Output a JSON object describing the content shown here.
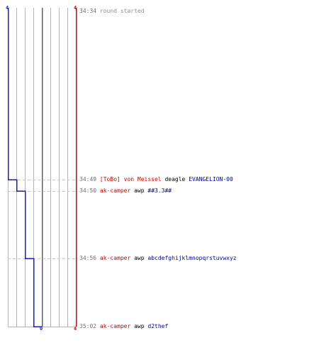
{
  "colors": {
    "grid": "#b4b4b4",
    "dashed": "#c8c8c8",
    "center": "#606060",
    "blue_team": "#1a1acc",
    "red_team": "#cc0000",
    "time_text": "#707070"
  },
  "axis": {
    "blue_start_count": "4",
    "red_start_count": "4",
    "blue_end_count": "0",
    "red_end_count": "4"
  },
  "events": [
    {
      "time": "34:34",
      "type": "event",
      "text": "round started"
    },
    {
      "time": "34:49",
      "type": "kill",
      "killer": "[ToBo] von Meissel",
      "weapon": "deagle",
      "victim": "EVANGELION-00"
    },
    {
      "time": "34:50",
      "type": "kill",
      "killer": "ak-camper",
      "weapon": "awp",
      "victim": "##3.3##"
    },
    {
      "time": "34:56",
      "type": "kill",
      "killer": "ak-camper",
      "weapon": "awp",
      "victim": "abcdefghijklmnopqrstuvwxyz"
    },
    {
      "time": "35:02",
      "type": "kill",
      "killer": "ak-camper",
      "weapon": "awp",
      "victim": "d2thef"
    }
  ],
  "blue_steps": [
    4,
    3,
    2,
    1,
    0
  ],
  "red_steps": [
    4,
    4,
    4,
    4,
    4
  ]
}
